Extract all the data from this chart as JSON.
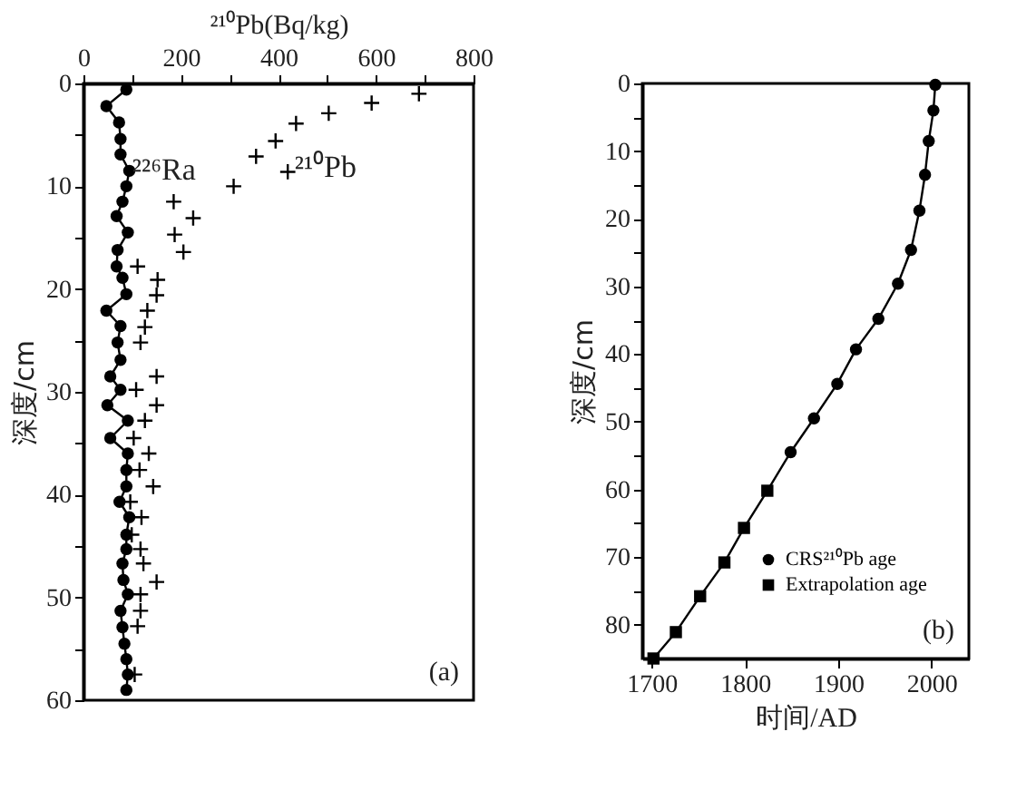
{
  "chart_data": [
    {
      "type": "line",
      "xlabel": "²¹⁰Pb(Bq/kg)",
      "ylabel": "深度/cm",
      "xlim": [
        0,
        800
      ],
      "xticks": [
        0,
        {
          "value": 100,
          "label": null
        },
        200,
        {
          "value": 300,
          "label": null
        },
        400,
        {
          "value": 500,
          "label": null
        },
        600,
        {
          "value": 700,
          "label": null
        },
        800
      ],
      "ylim": [
        60,
        0
      ],
      "yticks": [
        0,
        {
          "value": 5,
          "label": null
        },
        10,
        {
          "value": 15,
          "label": null
        },
        20,
        {
          "value": 25,
          "label": null
        },
        30,
        {
          "value": 35,
          "label": null
        },
        40,
        {
          "value": 45,
          "label": null
        },
        50,
        {
          "value": 55,
          "label": null
        },
        60
      ],
      "grid": false,
      "legend": false,
      "series": [
        {
          "marker": "circle",
          "color": "#000000",
          "x": [
            88,
            47,
            73,
            76,
            76,
            94,
            88,
            80,
            68,
            91,
            70,
            68,
            80,
            88,
            47,
            76,
            70,
            76,
            55,
            76,
            49,
            91,
            55,
            91,
            88,
            88,
            74,
            94,
            88,
            88,
            80,
            82,
            91,
            76,
            80,
            84,
            88,
            91,
            88
          ],
          "values": [
            0.6,
            2.2,
            3.8,
            5.4,
            6.9,
            8.5,
            10,
            11.5,
            12.9,
            14.5,
            16.2,
            17.8,
            18.9,
            20.5,
            22.1,
            23.6,
            25.2,
            26.9,
            28.5,
            29.8,
            31.3,
            32.8,
            34.5,
            36.0,
            37.6,
            39.2,
            40.7,
            42.2,
            43.9,
            45.3,
            46.7,
            48.3,
            49.7,
            51.3,
            52.9,
            54.5,
            56.0,
            57.5,
            59.0
          ]
        },
        {
          "type": "scatter",
          "marker": "cross",
          "color": "#000000",
          "x": [
            688,
            591,
            503,
            436,
            394,
            354,
            419,
            308,
            185,
            225,
            187,
            205,
            111,
            152,
            150,
            131,
            126,
            117,
            150,
            108,
            150,
            126,
            103,
            134,
            115,
            143,
            96,
            119,
            99,
            117,
            123,
            150,
            117,
            117,
            111,
            105
          ],
          "values": [
            1.0,
            1.9,
            2.9,
            3.9,
            5.6,
            7.1,
            8.6,
            10,
            11.5,
            13.1,
            14.7,
            16.4,
            17.8,
            19.1,
            20.6,
            22.1,
            23.7,
            25.2,
            28.5,
            29.8,
            31.3,
            32.8,
            34.5,
            36.0,
            37.6,
            39.2,
            40.7,
            42.2,
            43.9,
            45.3,
            46.7,
            48.5,
            49.7,
            51.3,
            52.8,
            57.5
          ]
        }
      ],
      "annotations": [
        {
          "text": "²²⁶Ra",
          "x": 100,
          "y": 8.5
        },
        {
          "text": "²¹⁰Pb",
          "x": 433,
          "y": 8.2
        },
        "(a)"
      ]
    },
    {
      "type": "line",
      "xlabel": "时间/AD",
      "ylabel": "深度/cm",
      "xlim": [
        1690,
        2040
      ],
      "xticks": [
        1700,
        1800,
        1900,
        2000
      ],
      "ylim": [
        85,
        0
      ],
      "yticks": [
        0,
        {
          "value": 5,
          "label": null
        },
        10,
        {
          "value": 15,
          "label": null
        },
        20,
        {
          "value": 25,
          "label": null
        },
        30,
        {
          "value": 35,
          "label": null
        },
        40,
        {
          "value": 45,
          "label": null
        },
        50,
        {
          "value": 55,
          "label": null
        },
        60,
        {
          "value": 65,
          "label": null
        },
        70,
        {
          "value": 75,
          "label": null
        },
        80
      ],
      "grid": false,
      "legend": "bottom right",
      "series": [
        {
          "marker": "none",
          "color": "#000000",
          "x": [
            2004,
            2002,
            1997,
            1993,
            1987,
            1978,
            1964,
            1943,
            1919,
            1899,
            1874,
            1849,
            1824,
            1799,
            1778,
            1752,
            1726,
            1702
          ],
          "values": [
            0.2,
            4.0,
            8.5,
            13.5,
            18.8,
            24.6,
            29.6,
            34.8,
            39.3,
            44.4,
            49.5,
            54.5,
            60.2,
            65.7,
            70.8,
            75.8,
            81.1,
            85
          ]
        },
        {
          "type": "scatter",
          "marker": "circle",
          "name": "CRS²¹⁰Pb age",
          "color": "#000000",
          "x": [
            2004,
            2002,
            1997,
            1993,
            1987,
            1978,
            1964,
            1943,
            1919,
            1899,
            1874,
            1849
          ],
          "values": [
            0.2,
            4.0,
            8.5,
            13.5,
            18.8,
            24.6,
            29.6,
            34.8,
            39.3,
            44.4,
            49.5,
            54.5
          ]
        },
        {
          "type": "scatter",
          "marker": "square",
          "name": "Extrapolation age",
          "color": "#000000",
          "x": [
            1824,
            1799,
            1778,
            1752,
            1726,
            1702
          ],
          "values": [
            60.2,
            65.7,
            70.8,
            75.8,
            81.1,
            85
          ]
        }
      ],
      "annotations": [
        "(b)"
      ]
    }
  ]
}
